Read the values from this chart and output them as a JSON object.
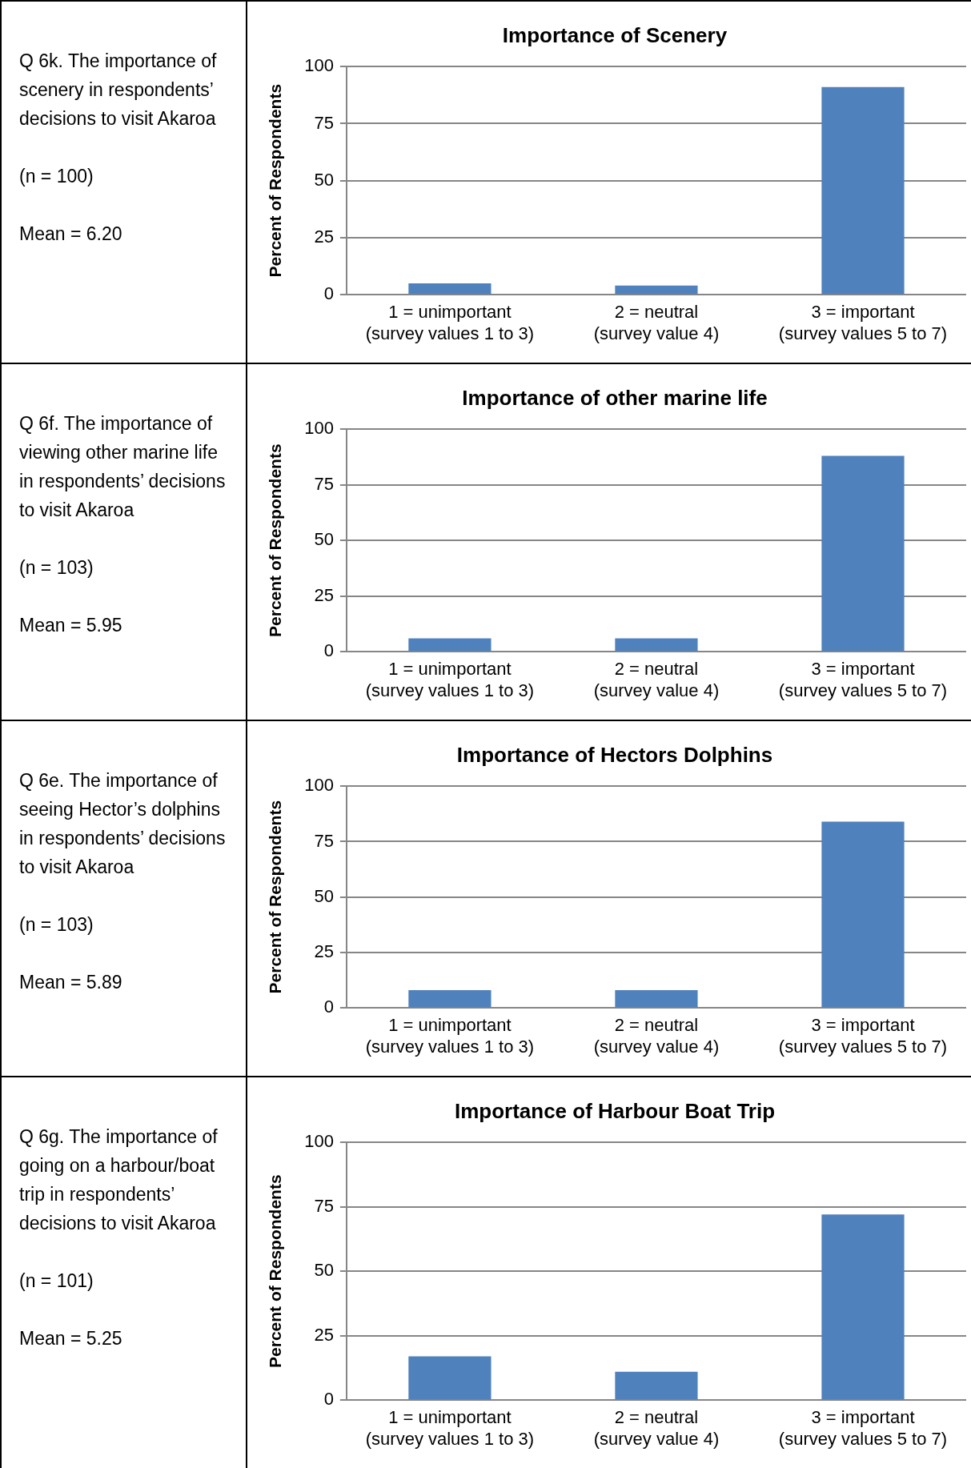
{
  "chart_data": [
    {
      "type": "other",
      "annotations": [
        "Q 6k. The importance of scenery in respondents’ decisions to visit Akaroa",
        "(n = 100)",
        "Mean = 6.20"
      ]
    },
    {
      "type": "bar",
      "title": "Importance of Scenery",
      "ylabel": "Percent of Respondents",
      "categories": [
        "1 = unimportant\n(survey values 1 to 3)",
        "2 = neutral\n(survey value 4)",
        "3 = important\n(survey values 5 to 7)"
      ],
      "values": [
        5,
        4,
        91
      ],
      "color": "#4f81bd",
      "ylim": [
        0,
        100
      ],
      "yticks": [
        0,
        25,
        50,
        75,
        100
      ],
      "grid": "y",
      "legend": false
    },
    {
      "type": "other",
      "annotations": [
        "Q 6f. The importance of viewing other marine life in respondents’ decisions to visit Akaroa",
        "(n = 103)",
        "Mean = 5.95"
      ]
    },
    {
      "type": "bar",
      "title": "Importance of other marine life",
      "ylabel": "Percent of Respondents",
      "categories": [
        "1 = unimportant\n(survey values 1 to 3)",
        "2 = neutral\n(survey value 4)",
        "3 = important\n(survey values 5 to 7)"
      ],
      "values": [
        6,
        6,
        88
      ],
      "color": "#4f81bd",
      "ylim": [
        0,
        100
      ],
      "yticks": [
        0,
        25,
        50,
        75,
        100
      ],
      "grid": "y",
      "legend": false
    },
    {
      "type": "other",
      "annotations": [
        "Q 6e. The importance of seeing Hector’s dolphins in respondents’ decisions to visit Akaroa",
        "(n = 103)",
        "Mean = 5.89"
      ]
    },
    {
      "type": "bar",
      "title": "Importance of Hectors Dolphins",
      "ylabel": "Percent of Respondents",
      "categories": [
        "1 = unimportant\n(survey values 1 to 3)",
        "2 = neutral\n(survey value 4)",
        "3 = important\n(survey values 5 to 7)"
      ],
      "values": [
        8,
        8,
        84
      ],
      "color": "#4f81bd",
      "ylim": [
        0,
        100
      ],
      "yticks": [
        0,
        25,
        50,
        75,
        100
      ],
      "grid": "y",
      "legend": false
    },
    {
      "type": "other",
      "annotations": [
        "Q 6g. The importance of going on a harbour/boat trip in respondents’ decisions to visit Akaroa",
        "(n = 101)",
        "Mean = 5.25"
      ]
    },
    {
      "type": "bar",
      "title": "Importance of Harbour Boat Trip",
      "ylabel": "Percent of Respondents",
      "categories": [
        "1 = unimportant\n(survey values 1 to 3)",
        "2 = neutral\n(survey value 4)",
        "3 = important\n(survey values 5 to 7)"
      ],
      "values": [
        17,
        11,
        72
      ],
      "color": "#4f81bd",
      "ylim": [
        0,
        100
      ],
      "yticks": [
        0,
        25,
        50,
        75,
        100
      ],
      "grid": "y",
      "legend": false
    }
  ]
}
